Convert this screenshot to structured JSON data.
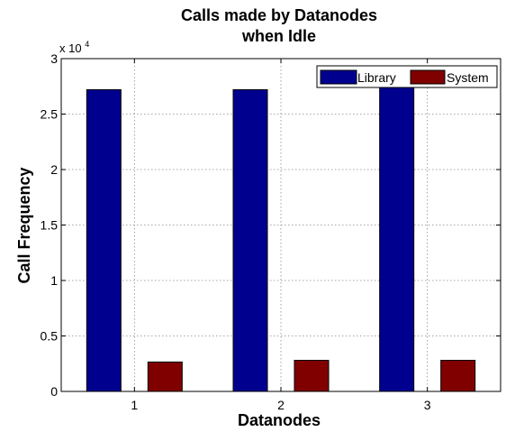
{
  "chart_data": {
    "type": "bar",
    "title": [
      "Calls made by Datanodes",
      "when Idle"
    ],
    "xlabel": "Datanodes",
    "ylabel": "Call Frequency",
    "y_multiplier_base": "x 10",
    "y_multiplier_exponent": "4",
    "ylim": [
      0,
      3
    ],
    "yticks": [
      0,
      0.5,
      1,
      1.5,
      2,
      2.5,
      3
    ],
    "ytick_labels": [
      "0",
      "0.5",
      "1",
      "1.5",
      "2",
      "2.5",
      "3"
    ],
    "categories": [
      "1",
      "2",
      "3"
    ],
    "grid": true,
    "legend_position": "top-right",
    "series": [
      {
        "name": "Library",
        "values": [
          27200,
          27200,
          27500
        ],
        "color": "#00008f"
      },
      {
        "name": "System",
        "values": [
          2650,
          2800,
          2800
        ],
        "color": "#800000"
      }
    ]
  }
}
